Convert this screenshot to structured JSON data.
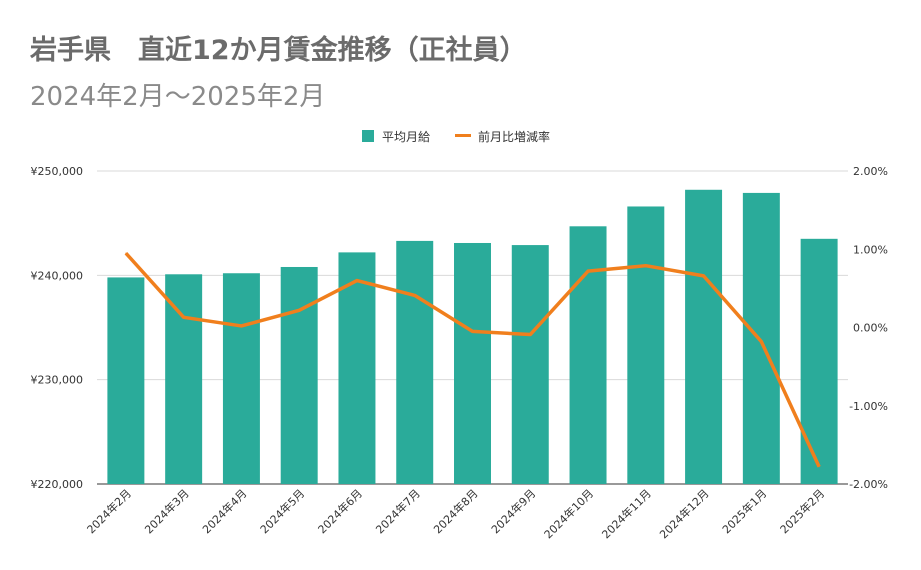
{
  "title": "岩手県　直近12か月賃金推移（正社員）",
  "subtitle": "2024年2月～2025年2月",
  "chart_data": {
    "type": "bar+line",
    "categories": [
      "2024年2月",
      "2024年3月",
      "2024年4月",
      "2024年5月",
      "2024年6月",
      "2024年7月",
      "2024年8月",
      "2024年9月",
      "2024年10月",
      "2024年11月",
      "2024年12月",
      "2025年1月",
      "2025年2月"
    ],
    "series": [
      {
        "name": "平均月給",
        "type": "bar",
        "axis": "left",
        "color": "#2aab9a",
        "values": [
          239800,
          240100,
          240200,
          240800,
          242200,
          243300,
          243100,
          242900,
          244700,
          246600,
          248200,
          247900,
          243500
        ]
      },
      {
        "name": "前月比増減率",
        "type": "line",
        "axis": "right",
        "color": "#f07f1d",
        "values": [
          0.95,
          0.13,
          0.02,
          0.22,
          0.6,
          0.41,
          -0.05,
          -0.09,
          0.72,
          0.79,
          0.66,
          -0.18,
          -1.78
        ]
      }
    ],
    "left_axis": {
      "min": 220000,
      "max": 250000,
      "ticks": [
        "¥220,000",
        "¥230,000",
        "¥240,000",
        "¥250,000"
      ],
      "tick_values": [
        220000,
        230000,
        240000,
        250000
      ]
    },
    "right_axis": {
      "min": -2,
      "max": 2,
      "ticks": [
        "-2.00%",
        "-1.00%",
        "0.00%",
        "1.00%",
        "2.00%"
      ],
      "tick_values": [
        -2,
        -1,
        0,
        1,
        2
      ]
    },
    "legend": {
      "position": "top",
      "items": [
        "平均月給",
        "前月比増減率"
      ]
    },
    "grid": true
  }
}
